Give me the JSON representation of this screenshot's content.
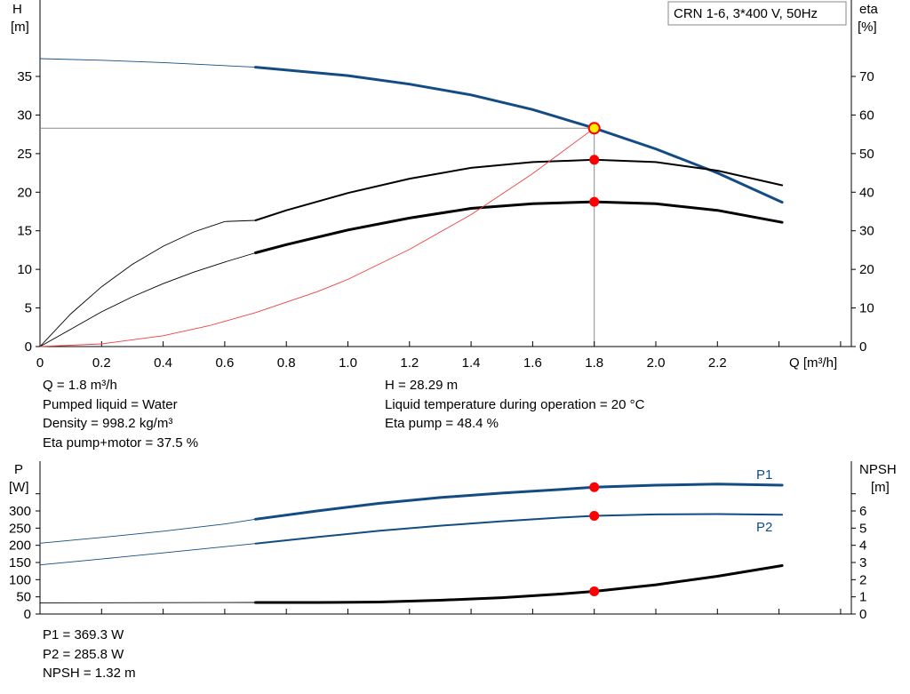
{
  "colors": {
    "head": "#134c84",
    "black": "#000000",
    "system_curve": "#f04040",
    "operating_point": "#ff0000",
    "duty_point_fill": "#ffee00",
    "axis": "#000000",
    "reference_line": "#8a8a8a"
  },
  "chart_data": [
    {
      "type": "line",
      "title": "CRN 1-6, 3*400 V, 50Hz",
      "xlabel": "Q [m³/h]",
      "ylabel_left": {
        "symbol": "H",
        "unit": "[m]"
      },
      "ylabel_right": {
        "symbol": "eta",
        "unit": "[%]"
      },
      "xlim": [
        0,
        2.6
      ],
      "ylim_left": [
        0,
        40
      ],
      "ylim_right": [
        0,
        80
      ],
      "x_ticks": [
        "0",
        "0.2",
        "0.4",
        "0.6",
        "0.8",
        "1.0",
        "1.2",
        "1.4",
        "1.6",
        "1.8",
        "2.0",
        "2.2"
      ],
      "y_ticks_left": [
        "0",
        "5",
        "10",
        "15",
        "20",
        "25",
        "30",
        "35"
      ],
      "y_ticks_right": [
        "0",
        "10",
        "20",
        "30",
        "40",
        "50",
        "60",
        "70"
      ],
      "series": [
        {
          "axis": "left",
          "color": "head",
          "extrapolated": [
            [
              0,
              37.3
            ],
            [
              0.2,
              37.1
            ],
            [
              0.4,
              36.8
            ],
            [
              0.7,
              36.2
            ]
          ],
          "operating": [
            [
              0.7,
              36.2
            ],
            [
              1.0,
              35.1
            ],
            [
              1.2,
              34.0
            ],
            [
              1.4,
              32.6
            ],
            [
              1.6,
              30.7
            ],
            [
              1.8,
              28.3
            ],
            [
              2.0,
              25.6
            ],
            [
              2.2,
              22.5
            ],
            [
              2.41,
              18.7
            ]
          ]
        },
        {
          "axis": "right",
          "color": "black",
          "extrapolated": [
            [
              0,
              0
            ],
            [
              0.1,
              8.5
            ],
            [
              0.2,
              15.5
            ],
            [
              0.3,
              21.3
            ],
            [
              0.4,
              26.0
            ],
            [
              0.5,
              29.7
            ],
            [
              0.6,
              32.4
            ],
            [
              0.7,
              32.7
            ]
          ],
          "operating": [
            [
              0.7,
              32.7
            ],
            [
              0.8,
              35.3
            ],
            [
              1.0,
              39.8
            ],
            [
              1.2,
              43.5
            ],
            [
              1.4,
              46.3
            ],
            [
              1.6,
              47.8
            ],
            [
              1.8,
              48.4
            ],
            [
              2.0,
              47.8
            ],
            [
              2.2,
              45.6
            ],
            [
              2.41,
              41.8
            ]
          ]
        },
        {
          "axis": "right",
          "color": "black",
          "thick": true,
          "extrapolated": [
            [
              0,
              0
            ],
            [
              0.1,
              4.5
            ],
            [
              0.2,
              9.0
            ],
            [
              0.3,
              12.9
            ],
            [
              0.4,
              16.3
            ],
            [
              0.5,
              19.3
            ],
            [
              0.6,
              21.9
            ],
            [
              0.7,
              24.3
            ]
          ],
          "operating": [
            [
              0.7,
              24.3
            ],
            [
              0.8,
              26.4
            ],
            [
              1.0,
              30.2
            ],
            [
              1.2,
              33.3
            ],
            [
              1.4,
              35.8
            ],
            [
              1.6,
              37.0
            ],
            [
              1.8,
              37.5
            ],
            [
              2.0,
              37.0
            ],
            [
              2.2,
              35.3
            ],
            [
              2.41,
              32.2
            ]
          ]
        },
        {
          "axis": "left",
          "color": "system_curve",
          "thin": true,
          "points": [
            [
              0,
              0
            ],
            [
              0.2,
              0.35
            ],
            [
              0.4,
              1.4
            ],
            [
              0.55,
              2.7
            ],
            [
              0.7,
              4.4
            ],
            [
              0.9,
              7.1
            ],
            [
              1.0,
              8.7
            ],
            [
              1.2,
              12.6
            ],
            [
              1.4,
              17.1
            ],
            [
              1.6,
              22.4
            ],
            [
              1.8,
              28.3
            ]
          ]
        }
      ],
      "operating_point": {
        "Q": 1.8,
        "H": 28.29,
        "eta_pump": 48.4,
        "eta_pump_motor": 37.5
      },
      "info_left": [
        "Q = 1.8 m³/h",
        "Pumped liquid = Water",
        "Density = 998.2 kg/m³",
        "Eta pump+motor = 37.5 %"
      ],
      "info_right": [
        "H = 28.29 m",
        "Liquid temperature during operation = 20 °C",
        "Eta pump = 48.4 %"
      ]
    },
    {
      "type": "line",
      "xlim": [
        0,
        2.6
      ],
      "ylabel_left": {
        "symbol": "P",
        "unit": "[W]"
      },
      "ylabel_right": {
        "symbol": "NPSH",
        "unit": "[m]"
      },
      "ylim_left": [
        0,
        350
      ],
      "ylim_right": [
        0,
        7
      ],
      "y_ticks_left": [
        "0",
        "50",
        "100",
        "150",
        "200",
        "250",
        "300"
      ],
      "y_ticks_right": [
        "0",
        "1",
        "2",
        "3",
        "4",
        "5",
        "6"
      ],
      "series": [
        {
          "name": "P1",
          "axis": "left",
          "color": "head",
          "thick": true,
          "extrapolated": [
            [
              0,
              206
            ],
            [
              0.2,
              223
            ],
            [
              0.4,
              241
            ],
            [
              0.6,
              262
            ],
            [
              0.7,
              276
            ]
          ],
          "operating": [
            [
              0.7,
              276
            ],
            [
              0.9,
              300
            ],
            [
              1.1,
              322
            ],
            [
              1.3,
              339
            ],
            [
              1.5,
              352
            ],
            [
              1.7,
              363
            ],
            [
              1.8,
              369.3
            ],
            [
              2.0,
              375
            ],
            [
              2.2,
              378
            ],
            [
              2.41,
              375
            ]
          ]
        },
        {
          "name": "P2",
          "axis": "left",
          "color": "head",
          "extrapolated": [
            [
              0,
              143
            ],
            [
              0.2,
              160
            ],
            [
              0.4,
              178
            ],
            [
              0.6,
              196
            ],
            [
              0.7,
              205
            ]
          ],
          "operating": [
            [
              0.7,
              205
            ],
            [
              0.9,
              224
            ],
            [
              1.1,
              242
            ],
            [
              1.3,
              257
            ],
            [
              1.5,
              270
            ],
            [
              1.7,
              281
            ],
            [
              1.8,
              285.8
            ],
            [
              2.0,
              290
            ],
            [
              2.2,
              291
            ],
            [
              2.41,
              289
            ]
          ]
        },
        {
          "axis": "right",
          "color": "black",
          "thick": true,
          "extrapolated": [
            [
              0,
              0.65
            ],
            [
              0.7,
              0.67
            ]
          ],
          "operating": [
            [
              0.7,
              0.67
            ],
            [
              0.9,
              0.67
            ],
            [
              1.1,
              0.7
            ],
            [
              1.3,
              0.8
            ],
            [
              1.5,
              0.95
            ],
            [
              1.7,
              1.18
            ],
            [
              1.8,
              1.32
            ],
            [
              2.0,
              1.7
            ],
            [
              2.2,
              2.2
            ],
            [
              2.41,
              2.82
            ]
          ]
        }
      ],
      "operating_point": {
        "Q": 1.8,
        "P1": 369.3,
        "P2": 285.8,
        "NPSH": 1.32
      },
      "info": [
        "P1 = 369.3 W",
        "P2 = 285.8 W",
        "NPSH = 1.32 m"
      ]
    }
  ]
}
